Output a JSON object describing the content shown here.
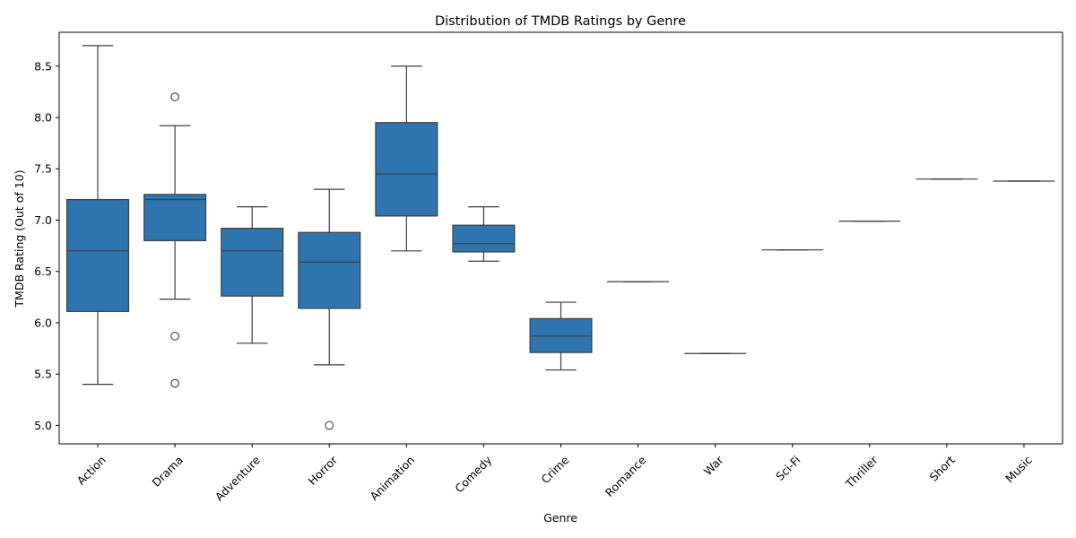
{
  "chart_data": {
    "type": "box",
    "title": "Distribution of TMDB Ratings by Genre",
    "xlabel": "Genre",
    "ylabel": "TMDB Rating (Out of 10)",
    "ylim": [
      4.82,
      8.83
    ],
    "yticks": [
      "5.0",
      "5.5",
      "6.0",
      "6.5",
      "7.0",
      "7.5",
      "8.0",
      "8.5"
    ],
    "grid": false,
    "box_color": "#2f75b0",
    "line_color": "#3d3d3d",
    "categories": [
      "Action",
      "Drama",
      "Adventure",
      "Horror",
      "Animation",
      "Comedy",
      "Crime",
      "Romance",
      "War",
      "Sci-Fi",
      "Thriller",
      "Short",
      "Music"
    ],
    "series": [
      {
        "category": "Action",
        "whisker_low": 5.4,
        "q1": 6.11,
        "median": 6.7,
        "q3": 7.2,
        "whisker_high": 8.7,
        "outliers": []
      },
      {
        "category": "Drama",
        "whisker_low": 6.23,
        "q1": 6.8,
        "median": 7.2,
        "q3": 7.25,
        "whisker_high": 7.92,
        "outliers": [
          8.2,
          5.87,
          5.41
        ]
      },
      {
        "category": "Adventure",
        "whisker_low": 5.8,
        "q1": 6.26,
        "median": 6.7,
        "q3": 6.92,
        "whisker_high": 7.13,
        "outliers": []
      },
      {
        "category": "Horror",
        "whisker_low": 5.59,
        "q1": 6.14,
        "median": 6.59,
        "q3": 6.88,
        "whisker_high": 7.3,
        "outliers": [
          5.0
        ]
      },
      {
        "category": "Animation",
        "whisker_low": 6.7,
        "q1": 7.04,
        "median": 7.45,
        "q3": 7.95,
        "whisker_high": 8.5,
        "outliers": []
      },
      {
        "category": "Comedy",
        "whisker_low": 6.6,
        "q1": 6.69,
        "median": 6.77,
        "q3": 6.95,
        "whisker_high": 7.13,
        "outliers": []
      },
      {
        "category": "Crime",
        "whisker_low": 5.54,
        "q1": 5.71,
        "median": 5.87,
        "q3": 6.04,
        "whisker_high": 6.2,
        "outliers": []
      },
      {
        "category": "Romance",
        "whisker_low": 6.4,
        "q1": 6.4,
        "median": 6.4,
        "q3": 6.4,
        "whisker_high": 6.4,
        "outliers": []
      },
      {
        "category": "War",
        "whisker_low": 5.7,
        "q1": 5.7,
        "median": 5.7,
        "q3": 5.7,
        "whisker_high": 5.7,
        "outliers": []
      },
      {
        "category": "Sci-Fi",
        "whisker_low": 6.71,
        "q1": 6.71,
        "median": 6.71,
        "q3": 6.71,
        "whisker_high": 6.71,
        "outliers": []
      },
      {
        "category": "Thriller",
        "whisker_low": 6.99,
        "q1": 6.99,
        "median": 6.99,
        "q3": 6.99,
        "whisker_high": 6.99,
        "outliers": []
      },
      {
        "category": "Short",
        "whisker_low": 7.4,
        "q1": 7.4,
        "median": 7.4,
        "q3": 7.4,
        "whisker_high": 7.4,
        "outliers": []
      },
      {
        "category": "Music",
        "whisker_low": 7.38,
        "q1": 7.38,
        "median": 7.38,
        "q3": 7.38,
        "whisker_high": 7.38,
        "outliers": []
      }
    ]
  }
}
